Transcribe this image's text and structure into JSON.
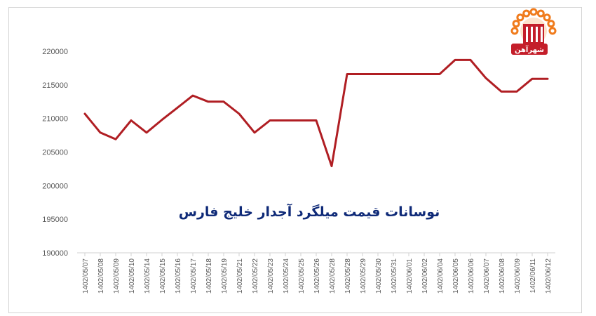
{
  "chart_data": {
    "type": "line",
    "title": "نوسانات قیمت میلگرد آجدار خلیج فارس",
    "xlabel": "",
    "ylabel": "",
    "ylim": [
      190000,
      220000
    ],
    "yticks": [
      190000,
      195000,
      200000,
      205000,
      210000,
      215000,
      220000
    ],
    "grid": false,
    "legend": "none",
    "line_color": "#b01e23",
    "categories": [
      "1402/05/07",
      "1402/05/08",
      "1402/05/09",
      "1402/05/10",
      "1402/05/14",
      "1402/05/15",
      "1402/05/16",
      "1402/05/17",
      "1402/05/18",
      "1402/05/19",
      "1402/05/21",
      "1402/05/22",
      "1402/05/23",
      "1402/05/24",
      "1402/05/25",
      "1402/05/26",
      "1402/05/28",
      "1402/05/28",
      "1402/05/29",
      "1402/05/30",
      "1402/05/31",
      "1402/06/01",
      "1402/06/02",
      "1402/06/04",
      "1402/06/05",
      "1402/06/06",
      "1402/06/07",
      "1402/06/08",
      "1402/06/09",
      "1402/06/11",
      "1402/06/12"
    ],
    "series": [
      {
        "values": [
          210700,
          207900,
          206900,
          209700,
          207900,
          209800,
          211600,
          213400,
          212500,
          212500,
          210700,
          207900,
          209700,
          209700,
          209700,
          209700,
          202900,
          216600,
          216600,
          216600,
          216600,
          216600,
          216600,
          216600,
          218700,
          218700,
          216000,
          214000,
          214000,
          215900,
          215900
        ]
      }
    ]
  },
  "logo": {
    "name": "شهرآهن",
    "colors": {
      "sun": "#f07b1c",
      "building": "#c41e2a"
    }
  }
}
